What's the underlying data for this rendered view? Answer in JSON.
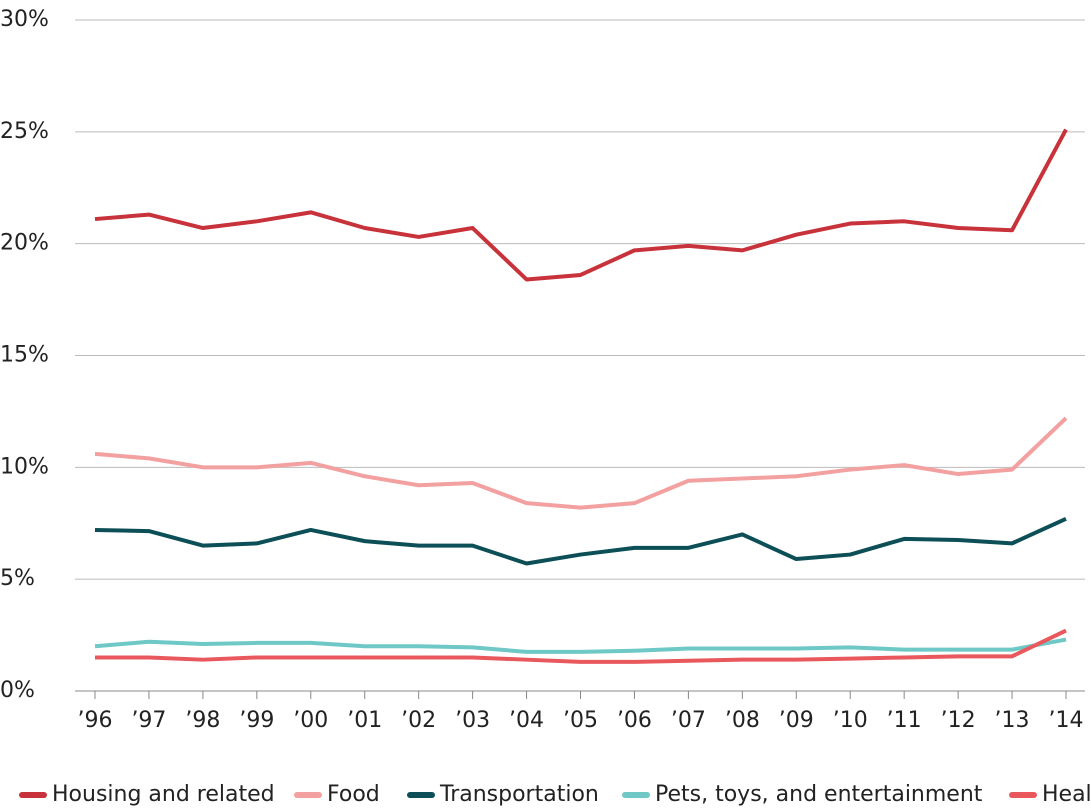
{
  "chart_data": {
    "type": "line",
    "categories": [
      "’96",
      "’97",
      "’98",
      "’99",
      "’00",
      "’01",
      "’02",
      "’03",
      "’04",
      "’05",
      "’06",
      "’07",
      "’08",
      "’09",
      "’10",
      "’11",
      "’12",
      "’13",
      "’14"
    ],
    "series": [
      {
        "name": "Housing and related",
        "color": "#c8323a",
        "values": [
          21.1,
          21.3,
          20.7,
          21.0,
          21.4,
          20.7,
          20.3,
          20.7,
          18.4,
          18.6,
          19.7,
          19.9,
          19.7,
          20.4,
          20.9,
          21.0,
          20.7,
          20.6,
          25.1
        ]
      },
      {
        "name": "Food",
        "color": "#f2a0a0",
        "values": [
          10.6,
          10.4,
          10.0,
          10.0,
          10.2,
          9.6,
          9.2,
          9.3,
          8.4,
          8.2,
          8.4,
          9.4,
          9.5,
          9.6,
          9.9,
          10.1,
          9.7,
          9.9,
          12.2
        ]
      },
      {
        "name": "Transportation",
        "color": "#0d4f57",
        "values": [
          7.2,
          7.15,
          6.5,
          6.6,
          7.2,
          6.7,
          6.5,
          6.5,
          5.7,
          6.1,
          6.4,
          6.4,
          7.0,
          5.9,
          6.1,
          6.8,
          6.75,
          6.6,
          7.7
        ]
      },
      {
        "name": "Pets, toys, and entertainment",
        "color": "#6ec8c6",
        "values": [
          2.0,
          2.2,
          2.1,
          2.15,
          2.15,
          2.0,
          2.0,
          1.95,
          1.75,
          1.75,
          1.8,
          1.9,
          1.9,
          1.9,
          1.95,
          1.85,
          1.85,
          1.85,
          2.3
        ]
      },
      {
        "name": "Health",
        "color": "#e8585c",
        "values": [
          1.5,
          1.5,
          1.4,
          1.5,
          1.5,
          1.5,
          1.5,
          1.5,
          1.4,
          1.3,
          1.3,
          1.35,
          1.4,
          1.4,
          1.45,
          1.5,
          1.55,
          1.55,
          2.7
        ]
      }
    ],
    "ylim": [
      0,
      30
    ],
    "yticks": [
      {
        "value": 0,
        "label": "0%"
      },
      {
        "value": 5,
        "label": "5%"
      },
      {
        "value": 10,
        "label": "10%"
      },
      {
        "value": 15,
        "label": "15%"
      },
      {
        "value": 20,
        "label": "20%"
      },
      {
        "value": 25,
        "label": "25%"
      },
      {
        "value": 30,
        "label": "30%"
      }
    ],
    "grid": true
  }
}
